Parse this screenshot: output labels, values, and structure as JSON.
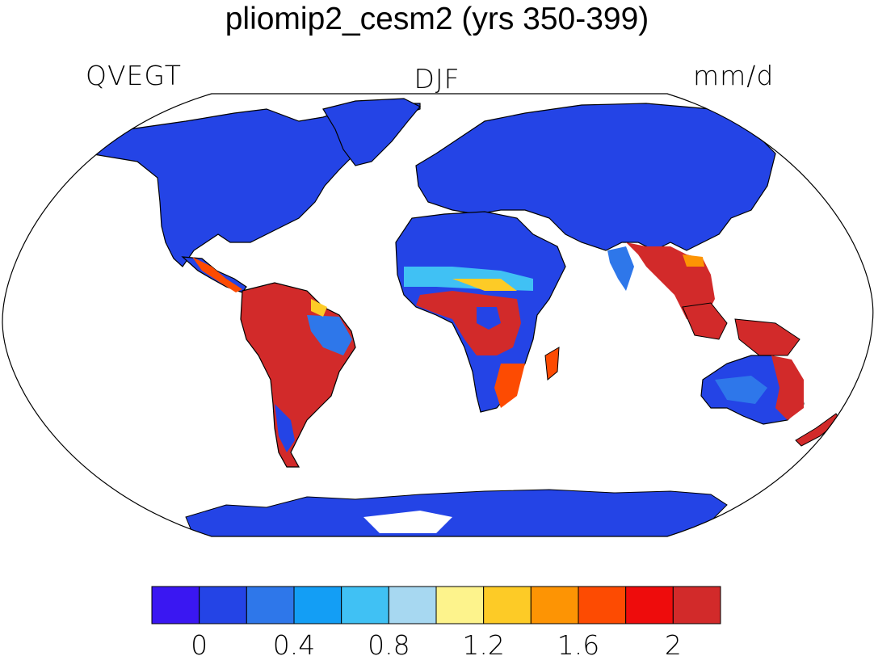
{
  "title": "pliomip2_cesm2 (yrs 350-399)",
  "subtitle_left": "QVEGT",
  "subtitle_center": "DJF",
  "subtitle_right": "mm/d",
  "colorbar": {
    "colors": [
      "#3a17f2",
      "#2444e6",
      "#2e77ea",
      "#139ef5",
      "#40c1f4",
      "#a7d8f1",
      "#fdf38c",
      "#fdcb26",
      "#fd9404",
      "#fd4b02",
      "#ee0c0c",
      "#d22a2a"
    ],
    "labels": [
      "0",
      "0.4",
      "0.8",
      "1.2",
      "1.6",
      "2"
    ],
    "label_at_boundary": [
      1,
      3,
      5,
      7,
      9,
      11
    ]
  },
  "map": {
    "projection": "Robinson",
    "ocean_color": "#ffffff",
    "land_base_color": "#2444e6"
  }
}
